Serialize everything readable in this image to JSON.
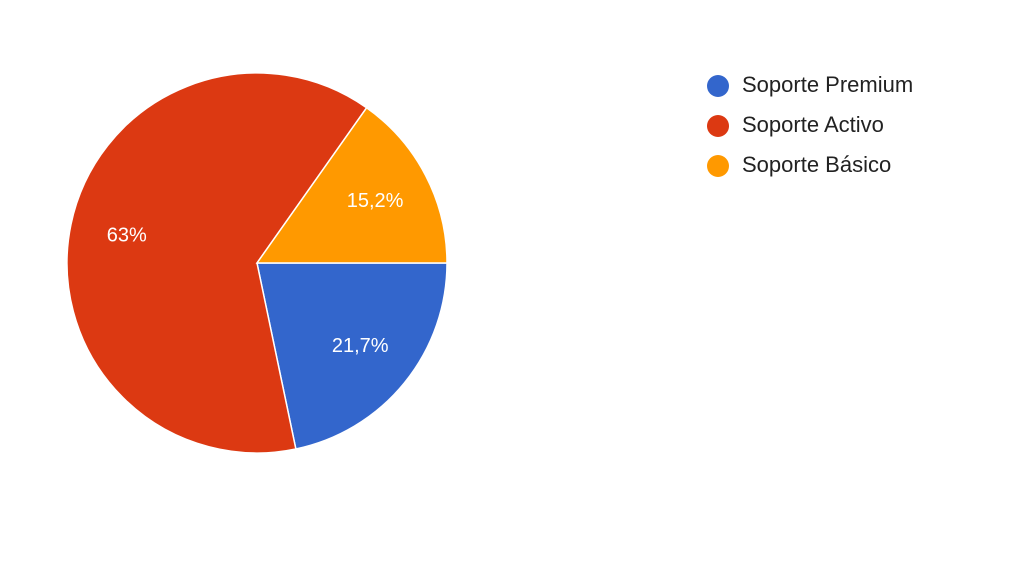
{
  "chart_data": {
    "type": "pie",
    "categories": [
      "Soporte Premium",
      "Soporte Activo",
      "Soporte Básico"
    ],
    "values": [
      21.7,
      63,
      15.2
    ],
    "value_labels": [
      "21,7%",
      "63%",
      "15,2%"
    ],
    "colors": [
      "#3366cc",
      "#dc3912",
      "#ff9900"
    ],
    "legend": "right"
  }
}
